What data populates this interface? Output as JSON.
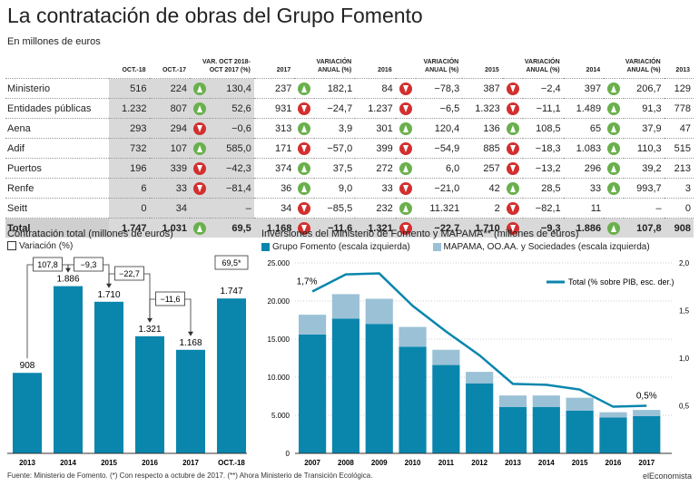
{
  "title": "La contratación de obras del Grupo Fomento",
  "subtitle": "En millones de euros",
  "table": {
    "headers": [
      "OCT.-18",
      "OCT.-17",
      "VAR. OCT 2018-\nOCT 2017 (%)",
      "2017",
      "VARIACIÓN\nANUAL (%)",
      "2016",
      "VARIACIÓN\nANUAL (%)",
      "2015",
      "VARIACIÓN\nANUAL (%)",
      "2014",
      "VARIACIÓN\nANUAL (%)",
      "2013"
    ],
    "rows": [
      {
        "label": "Ministerio",
        "oct18": "516",
        "oct17": "224",
        "d1": "up",
        "v1": "130,4",
        "y2017": "237",
        "d2": "up",
        "v2": "182,1",
        "y2016": "84",
        "d3": "down",
        "v3": "−78,3",
        "y2015": "387",
        "d4": "down",
        "v4": "−2,4",
        "y2014": "397",
        "d5": "up",
        "v5": "206,7",
        "y2013": "129"
      },
      {
        "label": "Entidades públicas",
        "oct18": "1.232",
        "oct17": "807",
        "d1": "up",
        "v1": "52,6",
        "y2017": "931",
        "d2": "down",
        "v2": "−24,7",
        "y2016": "1.237",
        "d3": "down",
        "v3": "−6,5",
        "y2015": "1.323",
        "d4": "down",
        "v4": "−11,1",
        "y2014": "1.489",
        "d5": "up",
        "v5": "91,3",
        "y2013": "778"
      },
      {
        "label": "Aena",
        "oct18": "293",
        "oct17": "294",
        "d1": "down",
        "v1": "−0,6",
        "y2017": "313",
        "d2": "up",
        "v2": "3,9",
        "y2016": "301",
        "d3": "up",
        "v3": "120,4",
        "y2015": "136",
        "d4": "up",
        "v4": "108,5",
        "y2014": "65",
        "d5": "up",
        "v5": "37,9",
        "y2013": "47"
      },
      {
        "label": "Adif",
        "oct18": "732",
        "oct17": "107",
        "d1": "up",
        "v1": "585,0",
        "y2017": "171",
        "d2": "down",
        "v2": "−57,0",
        "y2016": "399",
        "d3": "down",
        "v3": "−54,9",
        "y2015": "885",
        "d4": "down",
        "v4": "−18,3",
        "y2014": "1.083",
        "d5": "up",
        "v5": "110,3",
        "y2013": "515"
      },
      {
        "label": "Puertos",
        "oct18": "196",
        "oct17": "339",
        "d1": "down",
        "v1": "−42,3",
        "y2017": "374",
        "d2": "up",
        "v2": "37,5",
        "y2016": "272",
        "d3": "up",
        "v3": "6,0",
        "y2015": "257",
        "d4": "down",
        "v4": "−13,2",
        "y2014": "296",
        "d5": "up",
        "v5": "39,2",
        "y2013": "213"
      },
      {
        "label": "Renfe",
        "oct18": "6",
        "oct17": "33",
        "d1": "down",
        "v1": "−81,4",
        "y2017": "36",
        "d2": "up",
        "v2": "9,0",
        "y2016": "33",
        "d3": "down",
        "v3": "−21,0",
        "y2015": "42",
        "d4": "up",
        "v4": "28,5",
        "y2014": "33",
        "d5": "up",
        "v5": "993,7",
        "y2013": "3"
      },
      {
        "label": "Seitt",
        "oct18": "0",
        "oct17": "34",
        "d1": "",
        "v1": "–",
        "y2017": "34",
        "d2": "down",
        "v2": "−85,5",
        "y2016": "232",
        "d3": "up",
        "v3": "11.321",
        "y2015": "2",
        "d4": "down",
        "v4": "−82,1",
        "y2014": "11",
        "d5": "",
        "v5": "–",
        "y2013": "0"
      }
    ],
    "total": {
      "label": "Total",
      "oct18": "1.747",
      "oct17": "1.031",
      "d1": "up",
      "v1": "69,5",
      "y2017": "1.168",
      "d2": "down",
      "v2": "−11,6",
      "y2016": "1.321",
      "d3": "down",
      "v3": "−22,7",
      "y2015": "1.710",
      "d4": "down",
      "v4": "−9,3",
      "y2014": "1.886",
      "d5": "up",
      "v5": "107,8",
      "y2013": "908"
    }
  },
  "chart_data": [
    {
      "type": "bar",
      "title": "Contratación total (millones de euros)",
      "legend": "Variación (%)",
      "categories": [
        "2013",
        "2014",
        "2015",
        "2016",
        "2017",
        "OCT.-18"
      ],
      "values": [
        908,
        1886,
        1710,
        1321,
        1168,
        1747
      ],
      "value_labels": [
        "908",
        "1.886",
        "1.710",
        "1.321",
        "1.168",
        "1.747"
      ],
      "variations": [
        "107,8",
        "−9,3",
        "−22,7",
        "−11,6",
        "69,5*"
      ],
      "color": "#0a86ad"
    },
    {
      "type": "bar",
      "stacked": true,
      "title": "Inversiones del Ministerio de Fomento y MAPAMA** (millones de euros)",
      "categories": [
        "2007",
        "2008",
        "2009",
        "2010",
        "2011",
        "2012",
        "2013",
        "2014",
        "2015",
        "2016",
        "2017"
      ],
      "series": [
        {
          "name": "Grupo Fomento (escala izquierda)",
          "color": "#0a86ad",
          "values": [
            15600,
            17700,
            17000,
            14000,
            11600,
            9200,
            6100,
            6100,
            5600,
            4700,
            4900
          ]
        },
        {
          "name": "MAPAMA, OO.AA. y Sociedades (escala izquierda)",
          "color": "#9bc1d6",
          "values": [
            2600,
            3200,
            3300,
            2600,
            2000,
            1500,
            1500,
            1500,
            1700,
            700,
            800
          ]
        }
      ],
      "line": {
        "name": "Total (% sobre PIB, esc. der.)",
        "color": "#0a86ad",
        "values": [
          1.7,
          1.88,
          1.89,
          1.55,
          1.28,
          1.03,
          0.73,
          0.72,
          0.67,
          0.49,
          0.5
        ],
        "first_label": "1,7%",
        "last_label": "0,5%"
      },
      "ylim": [
        0,
        25000
      ],
      "yticks": [
        "0",
        "5.000",
        "10.000",
        "15.000",
        "20.000",
        "25.000"
      ],
      "y2lim": [
        0,
        2.0
      ],
      "y2ticks": [
        "0,5",
        "1,0",
        "1,5",
        "2,0"
      ]
    }
  ],
  "footer": {
    "source": "Fuente: Ministerio de Fomento. (*) Con respecto a octubre de 2017. (**) Ahora Ministerio de Transición Ecológica.",
    "brand": "elEconomista"
  }
}
